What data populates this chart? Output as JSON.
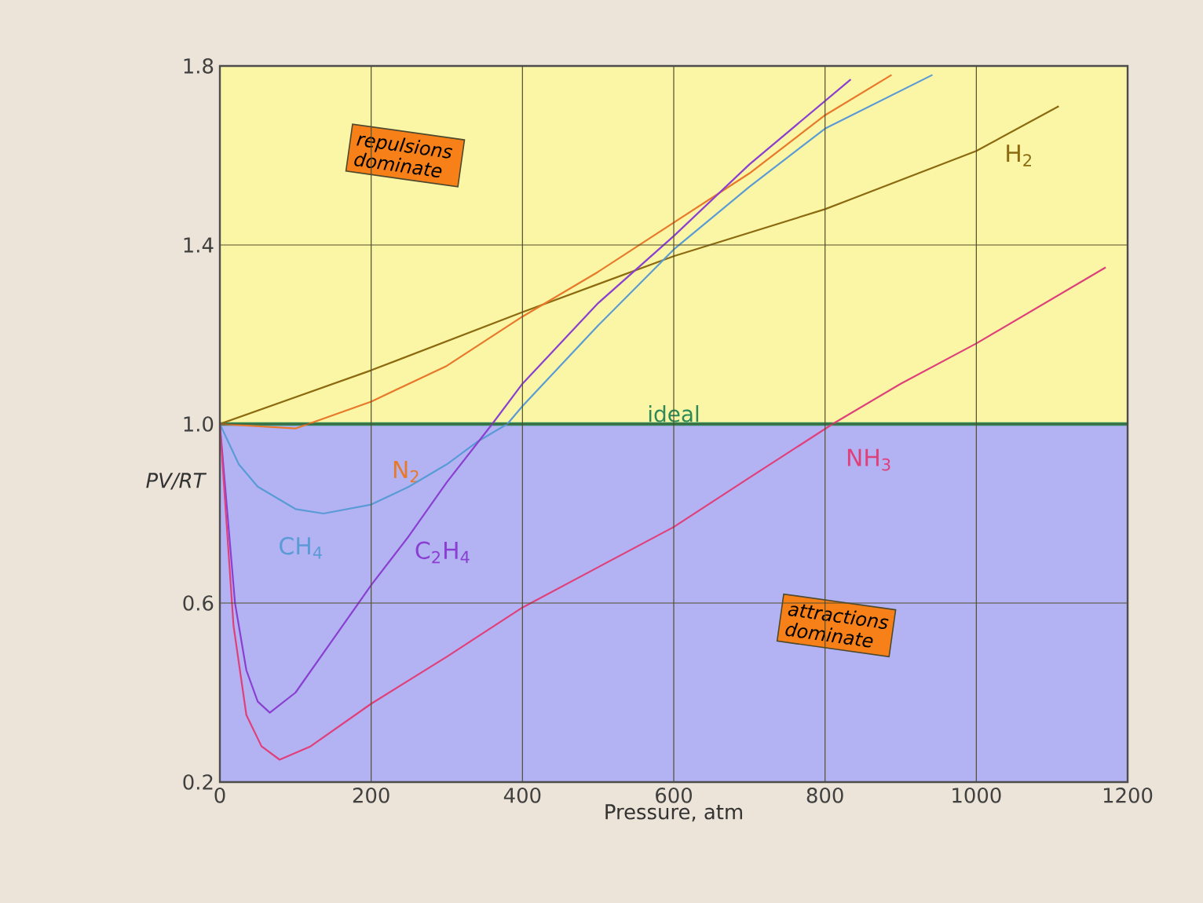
{
  "chart_data": {
    "type": "line",
    "xlabel": "Pressure, atm",
    "ylabel": "PV/RT",
    "xlim": [
      0,
      1200
    ],
    "xticks": [
      0,
      200,
      400,
      600,
      800,
      1000,
      1200
    ],
    "ylim": [
      0.2,
      1.8
    ],
    "yticks": [
      0.2,
      0.6,
      {
        "value": 1.0,
        "label": "1.0"
      },
      1.4,
      1.8
    ],
    "grid": true,
    "marker": "none",
    "line_style": "solid",
    "bands": [
      {
        "axis": "y",
        "from": 1.0,
        "to": 1.8,
        "color": "#fbf6a6"
      },
      {
        "axis": "y",
        "from": 0.2,
        "to": 1.0,
        "color": "#b3b3f4"
      }
    ],
    "ref_lines": [
      {
        "axis": "y",
        "value": 1.0,
        "label": "ideal",
        "color": "#2f8a5a"
      }
    ],
    "annotations": [
      "repulsions dominate",
      "attractions dominate"
    ],
    "series": [
      {
        "name": "H$_{2}$",
        "color": "#8b6a10",
        "x": [
          0,
          200,
          400,
          600,
          800,
          1000,
          1109
        ],
        "values": [
          1.0,
          1.12,
          1.25,
          1.375,
          1.48,
          1.61,
          1.71
        ]
      },
      {
        "name": "N$_{2}$",
        "color": "#e8782a",
        "x": [
          0,
          100,
          200,
          300,
          400,
          500,
          600,
          700,
          800,
          888
        ],
        "values": [
          1.0,
          0.99,
          1.05,
          1.13,
          1.24,
          1.34,
          1.45,
          1.56,
          1.69,
          1.78
        ]
      },
      {
        "name": "CH$_{4}$",
        "color": "#5b9bd5",
        "x": [
          0,
          25,
          50,
          100,
          137,
          200,
          250,
          300,
          340,
          380,
          400,
          500,
          600,
          700,
          800,
          942
        ],
        "values": [
          1.0,
          0.91,
          0.86,
          0.81,
          0.8,
          0.82,
          0.86,
          0.91,
          0.96,
          1.0,
          1.04,
          1.22,
          1.39,
          1.53,
          1.66,
          1.78
        ]
      },
      {
        "name": "C$_{2}$H$_{4}$",
        "color": "#8a3fd1",
        "x": [
          0,
          10,
          20,
          35,
          50,
          66,
          100,
          150,
          200,
          250,
          300,
          360,
          400,
          500,
          600,
          700,
          834
        ],
        "values": [
          1.0,
          0.8,
          0.6,
          0.45,
          0.38,
          0.355,
          0.4,
          0.52,
          0.64,
          0.75,
          0.87,
          1.0,
          1.09,
          1.27,
          1.42,
          1.58,
          1.77
        ]
      },
      {
        "name": "NH$_{3}$",
        "color": "#e0407a",
        "x": [
          0,
          8,
          18,
          35,
          55,
          79,
          120,
          200,
          300,
          400,
          500,
          600,
          700,
          810,
          900,
          1000,
          1171
        ],
        "values": [
          1.0,
          0.8,
          0.55,
          0.35,
          0.28,
          0.25,
          0.28,
          0.375,
          0.48,
          0.59,
          0.68,
          0.77,
          0.88,
          1.0,
          1.09,
          1.18,
          1.35
        ]
      }
    ]
  }
}
